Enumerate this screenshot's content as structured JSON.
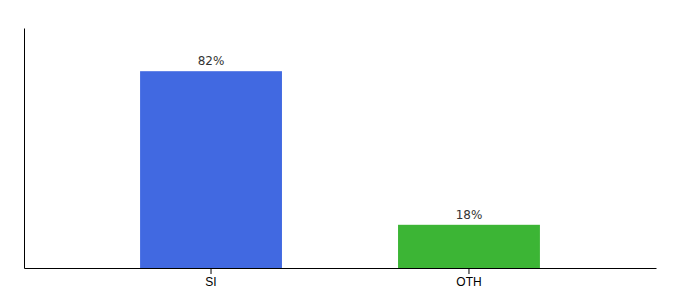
{
  "chart_data": {
    "type": "bar",
    "categories": [
      "SI",
      "OTH"
    ],
    "values": [
      82,
      18
    ],
    "value_labels": [
      "82%",
      "18%"
    ],
    "colors": [
      "#4169e1",
      "#3cb535"
    ],
    "ylim": [
      0,
      100
    ],
    "data_labels": true,
    "tick_labels": "x",
    "grid": false
  }
}
